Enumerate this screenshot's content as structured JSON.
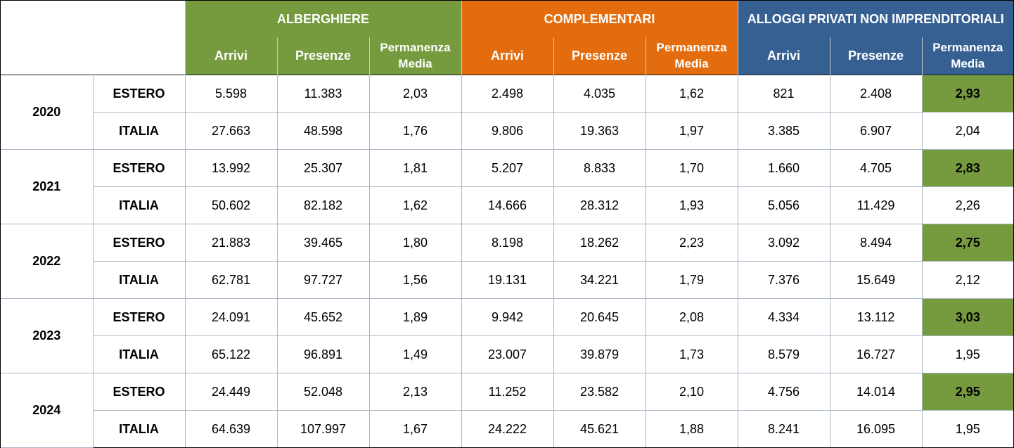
{
  "groups": {
    "alberghiere": "ALBERGHIERE",
    "complementari": "COMPLEMENTARI",
    "alloggi": "ALLOGGI PRIVATI NON IMPRENDITORIALI"
  },
  "subheaders": {
    "arrivi": "Arrivi",
    "presenze": "Presenze",
    "permanenza_line1": "Permanenza",
    "permanenza_line2": "Media"
  },
  "colors": {
    "alberghiere": "#769a3e",
    "complementari": "#e36d0e",
    "alloggi": "#376092",
    "highlight": "#769a3e"
  },
  "rows": [
    {
      "year": "2020",
      "origin": "ESTERO",
      "values": [
        "5.598",
        "11.383",
        "2,03",
        "2.498",
        "4.035",
        "1,62",
        "821",
        "2.408",
        "2,93"
      ]
    },
    {
      "year": "2020",
      "origin": "ITALIA",
      "values": [
        "27.663",
        "48.598",
        "1,76",
        "9.806",
        "19.363",
        "1,97",
        "3.385",
        "6.907",
        "2,04"
      ]
    },
    {
      "year": "2021",
      "origin": "ESTERO",
      "values": [
        "13.992",
        "25.307",
        "1,81",
        "5.207",
        "8.833",
        "1,70",
        "1.660",
        "4.705",
        "2,83"
      ]
    },
    {
      "year": "2021",
      "origin": "ITALIA",
      "values": [
        "50.602",
        "82.182",
        "1,62",
        "14.666",
        "28.312",
        "1,93",
        "5.056",
        "11.429",
        "2,26"
      ]
    },
    {
      "year": "2022",
      "origin": "ESTERO",
      "values": [
        "21.883",
        "39.465",
        "1,80",
        "8.198",
        "18.262",
        "2,23",
        "3.092",
        "8.494",
        "2,75"
      ]
    },
    {
      "year": "2022",
      "origin": "ITALIA",
      "values": [
        "62.781",
        "97.727",
        "1,56",
        "19.131",
        "34.221",
        "1,79",
        "7.376",
        "15.649",
        "2,12"
      ]
    },
    {
      "year": "2023",
      "origin": "ESTERO",
      "values": [
        "24.091",
        "45.652",
        "1,89",
        "9.942",
        "20.645",
        "2,08",
        "4.334",
        "13.112",
        "3,03"
      ]
    },
    {
      "year": "2023",
      "origin": "ITALIA",
      "values": [
        "65.122",
        "96.891",
        "1,49",
        "23.007",
        "39.879",
        "1,73",
        "8.579",
        "16.727",
        "1,95"
      ]
    },
    {
      "year": "2024",
      "origin": "ESTERO",
      "values": [
        "24.449",
        "52.048",
        "2,13",
        "11.252",
        "23.582",
        "2,10",
        "4.756",
        "14.014",
        "2,95"
      ]
    },
    {
      "year": "2024",
      "origin": "ITALIA",
      "values": [
        "64.639",
        "107.997",
        "1,67",
        "24.222",
        "45.621",
        "1,88",
        "8.241",
        "16.095",
        "1,95"
      ]
    }
  ]
}
